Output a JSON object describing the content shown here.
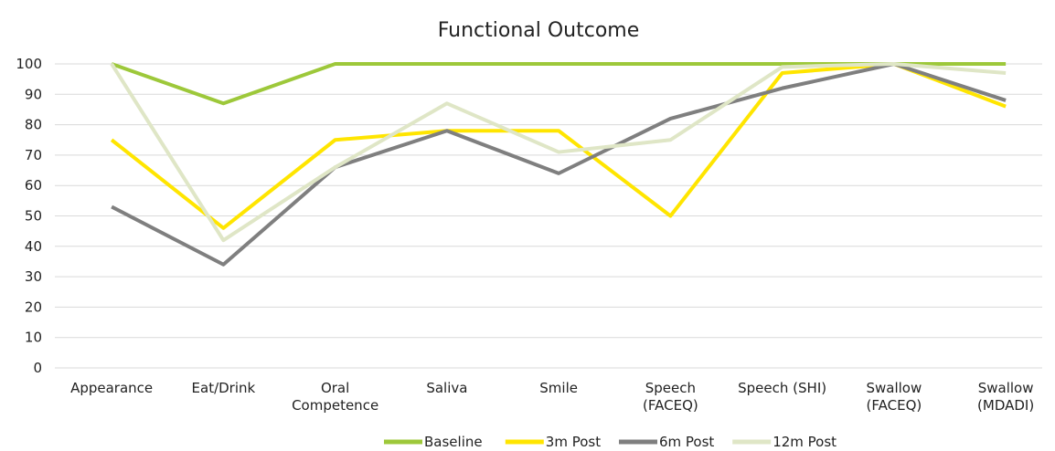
{
  "chart_data": {
    "type": "line",
    "title": "Functional Outcome",
    "categories": [
      "Appearance",
      "Eat/Drink",
      "Oral\nCompetence",
      "Saliva",
      "Smile",
      "Speech\n(FACEQ)",
      "Speech (SHI)",
      "Swallow\n(FACEQ)",
      "Swallow\n(MDADI)"
    ],
    "series": [
      {
        "name": "Baseline",
        "color": "#9dc83a",
        "values": [
          100,
          87,
          100,
          100,
          100,
          100,
          100,
          100,
          100
        ]
      },
      {
        "name": "3m Post",
        "color": "#ffe500",
        "values": [
          75,
          46,
          75,
          78,
          78,
          50,
          97,
          100,
          86
        ]
      },
      {
        "name": "6m Post",
        "color": "#7f7f7f",
        "values": [
          53,
          34,
          66,
          78,
          64,
          82,
          92,
          100,
          88
        ]
      },
      {
        "name": "12m Post",
        "color": "#dfe6c6",
        "values": [
          100,
          42,
          66,
          87,
          71,
          75,
          99,
          100,
          97
        ]
      }
    ],
    "ylim": [
      0,
      100
    ],
    "yticks": [
      0,
      10,
      20,
      30,
      40,
      50,
      60,
      70,
      80,
      90,
      100
    ],
    "grid": true,
    "legend": "bottom"
  }
}
